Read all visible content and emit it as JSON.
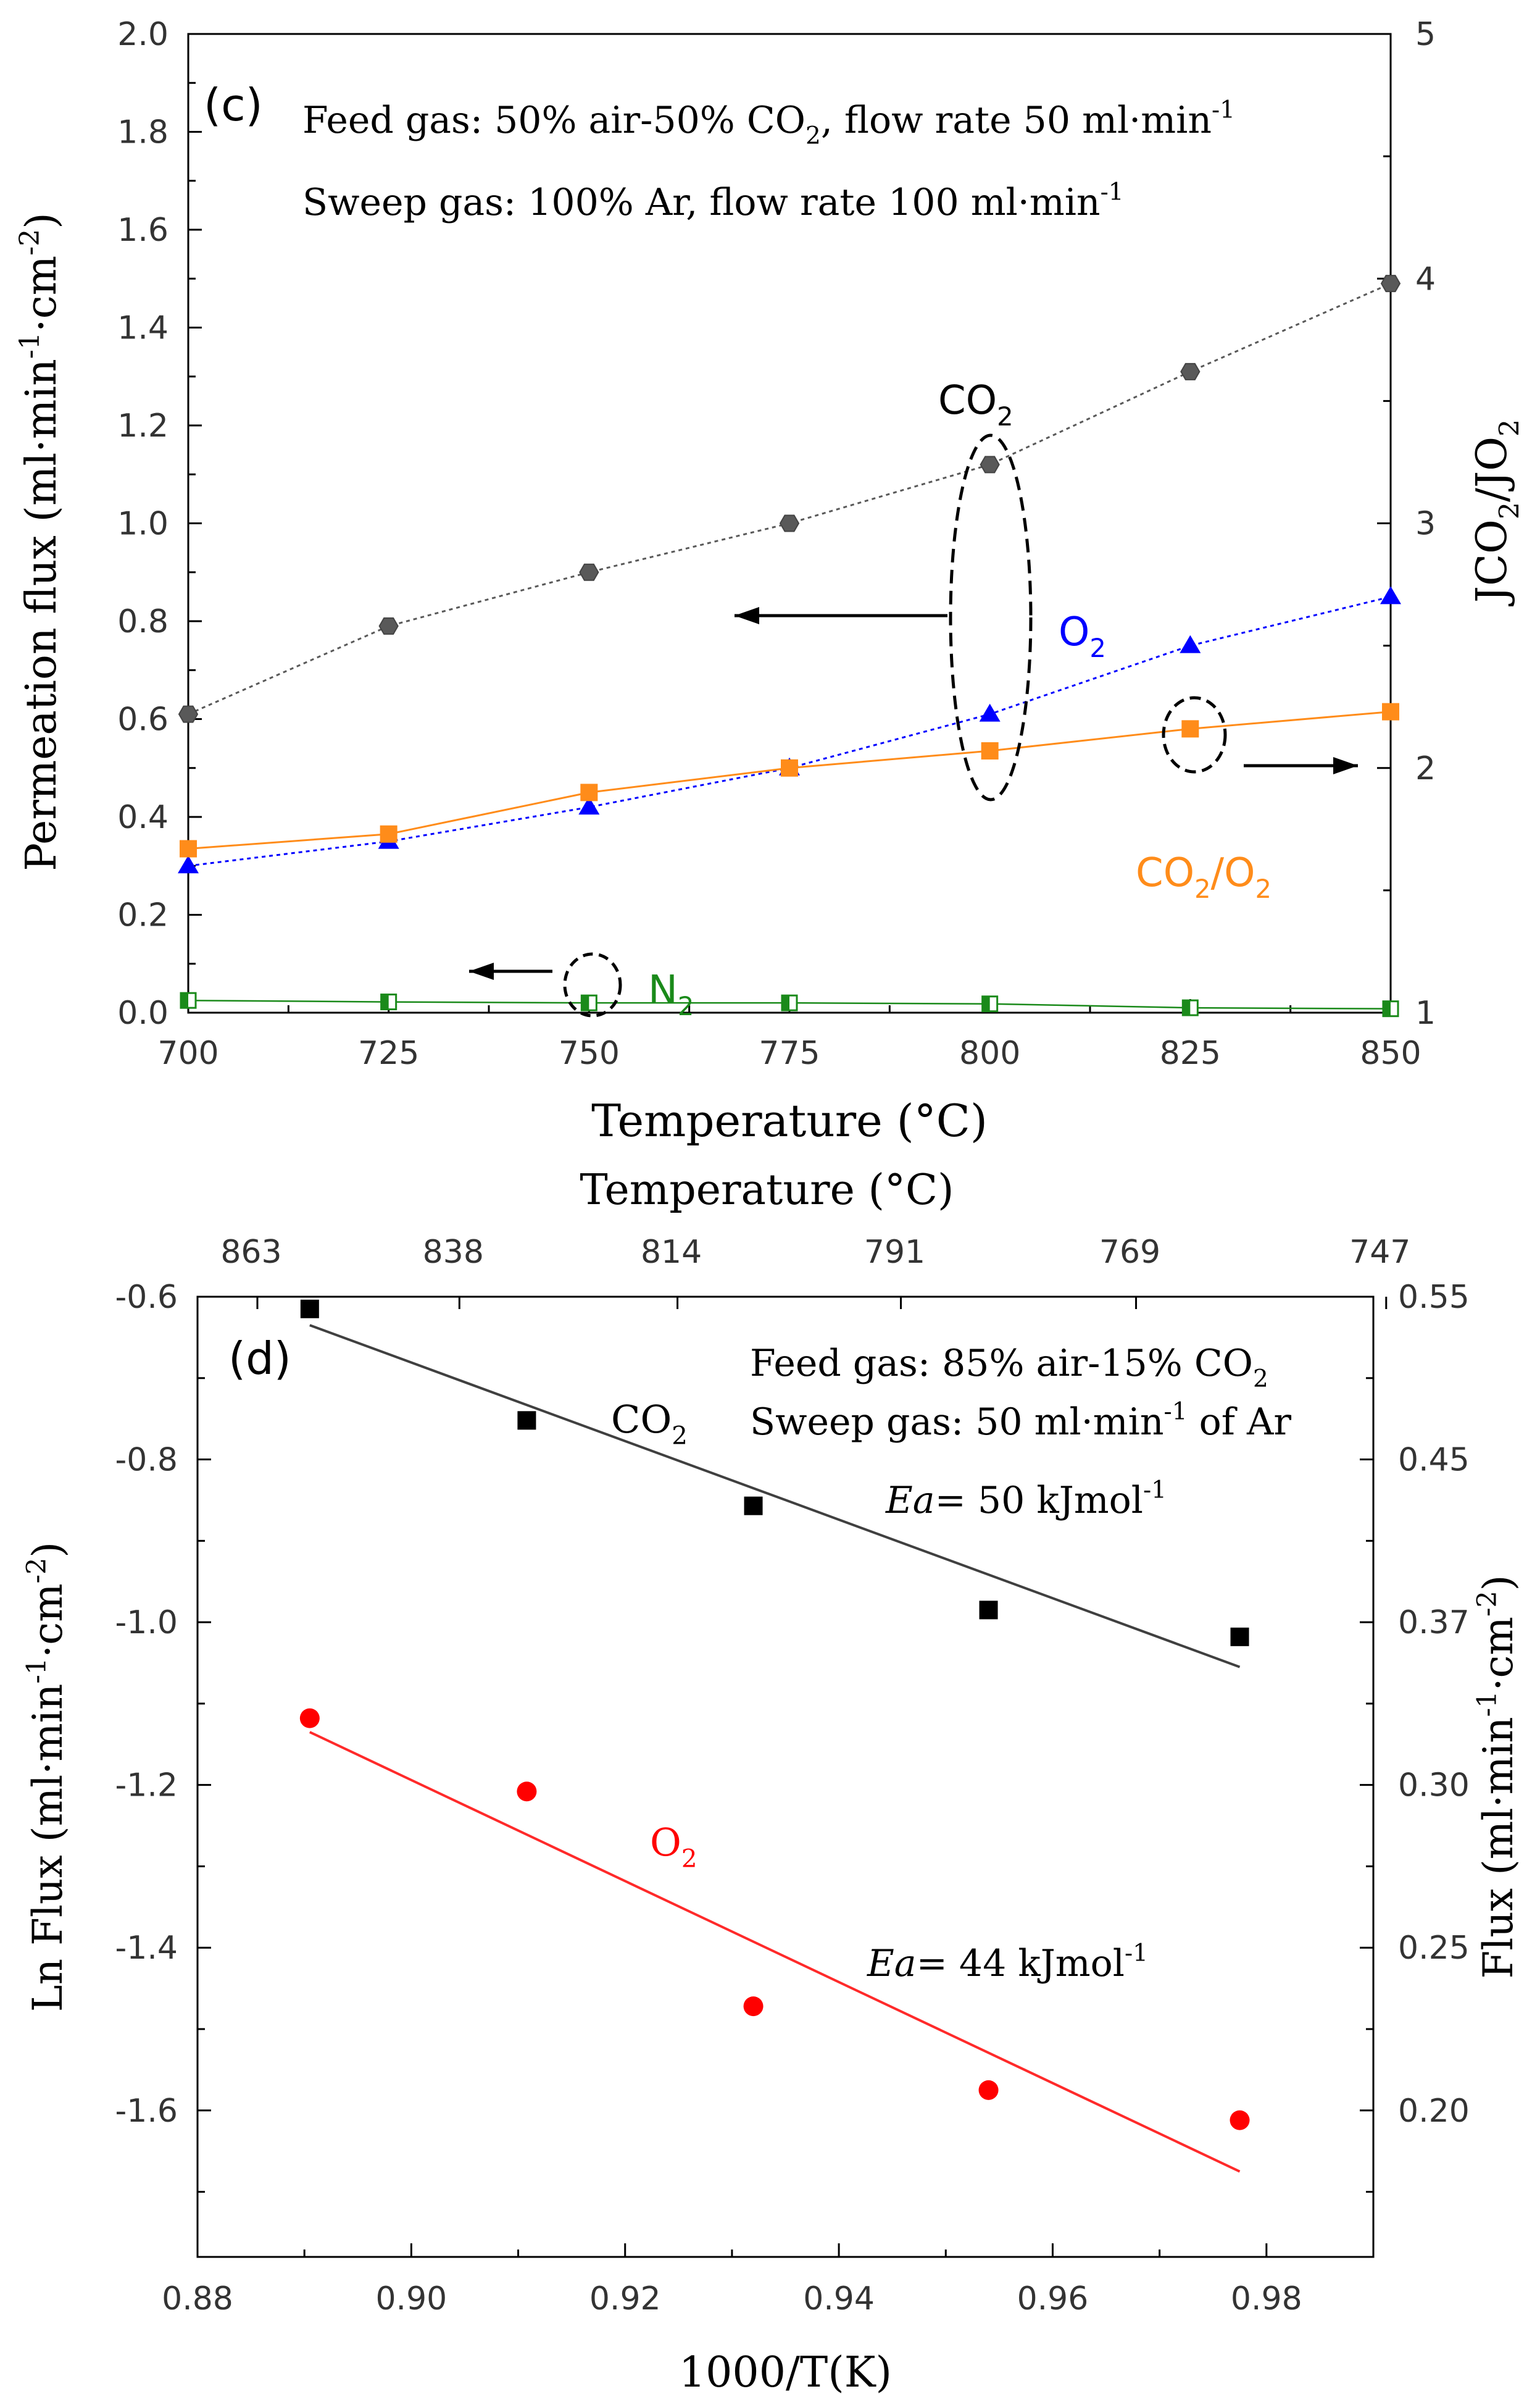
{
  "chart_data": [
    {
      "type": "line",
      "panel_label": "(c)",
      "annotations": {
        "feed": "Feed gas: 50% air-50% CO",
        "feed_sub": "2",
        "feed_tail": ", flow rate 50 ml·min",
        "feed_sup": "-1",
        "sweep": "Sweep gas: 100% Ar, flow rate 100 ml·min",
        "sweep_sup": "-1"
      },
      "xlabel": "Temperature (°C)",
      "ylabel": "Permeation flux (ml·min-1·cm-2)",
      "ylabel_main": "Permeation flux (ml·min",
      "ylabel_sup1": "-1",
      "ylabel_mid": "·cm",
      "ylabel_sup2": "-2",
      "ylabel_end": ")",
      "y2label": "JCO2/JO2",
      "y2label_parts": [
        "JCO",
        "2",
        "/JO",
        "2"
      ],
      "x": [
        700,
        725,
        750,
        775,
        800,
        825,
        850
      ],
      "xlim": [
        700,
        850
      ],
      "xticks": [
        "700",
        "725",
        "750",
        "775",
        "800",
        "825",
        "850"
      ],
      "ylim": [
        0,
        2.0
      ],
      "yticks": [
        "0.0",
        "0.2",
        "0.4",
        "0.6",
        "0.8",
        "1.0",
        "1.2",
        "1.4",
        "1.6",
        "1.8",
        "2.0"
      ],
      "y2lim": [
        1,
        5
      ],
      "y2ticks": [
        "1",
        "2",
        "3",
        "4",
        "5"
      ],
      "series": [
        {
          "name": "CO2",
          "label_main": "CO",
          "label_sub": "2",
          "axis": "left",
          "color": "#595959",
          "marker": "circle",
          "values": [
            0.61,
            0.79,
            0.9,
            1.0,
            1.12,
            1.31,
            1.49
          ]
        },
        {
          "name": "O2",
          "label_main": "O",
          "label_sub": "2",
          "axis": "left",
          "color": "#0000ff",
          "marker": "triangle",
          "values": [
            0.3,
            0.35,
            0.42,
            0.5,
            0.61,
            0.75,
            0.85
          ]
        },
        {
          "name": "N2",
          "label_main": "N",
          "label_sub": "2",
          "axis": "left",
          "color": "#1a8a1a",
          "marker": "square-half",
          "values": [
            0.025,
            0.022,
            0.02,
            0.02,
            0.018,
            0.01,
            0.008
          ]
        },
        {
          "name": "CO2/O2",
          "label_main": "CO",
          "label_sub": "2",
          "label_mid": "/O",
          "label_sub2": "2",
          "axis": "right",
          "color": "#ff8c1a",
          "marker": "square",
          "values": [
            1.67,
            1.73,
            1.9,
            2.0,
            2.07,
            2.16,
            2.23
          ]
        }
      ]
    },
    {
      "type": "scatter",
      "panel_label": "(d)",
      "annotations": {
        "feed": "Feed gas: 85% air-15% CO",
        "feed_sub": "2",
        "sweep": "Sweep gas:  50 ml·min",
        "sweep_sup": "-1",
        "sweep_tail": " of Ar",
        "ea_co2": "= 50 kJmol",
        "ea_o2": "= 44 kJmol",
        "ea_label": "Ea",
        "ea_sup": "-1"
      },
      "xlabel": "1000/T(K)",
      "top_xlabel": "Temperature (°C)",
      "ylabel_main": "Ln Flux (ml·min",
      "ylabel_sup1": "-1",
      "ylabel_mid": "·cm",
      "ylabel_sup2": "-2",
      "ylabel_end": ")",
      "y2label_main": "Flux (ml·min",
      "y2label_sup1": "-1",
      "y2label_mid": "·cm",
      "y2label_sup2": "-2",
      "y2label_end": ")",
      "xlim": [
        0.88,
        0.99
      ],
      "xticks": [
        "0.88",
        "0.90",
        "0.92",
        "0.94",
        "0.96",
        "0.98"
      ],
      "top_xticks": [
        "863",
        "838",
        "814",
        "791",
        "769",
        "747"
      ],
      "ylim": [
        -1.78,
        -0.6
      ],
      "yticks": [
        "-0.6",
        "-0.8",
        "-1.0",
        "-1.2",
        "-1.4",
        "-1.6"
      ],
      "y2ticks": [
        "0.55",
        "0.45",
        "0.37",
        "0.30",
        "0.25",
        "0.20"
      ],
      "series": [
        {
          "name": "CO2",
          "label_main": "CO",
          "label_sub": "2",
          "color": "#000000",
          "marker": "square",
          "x": [
            0.8905,
            0.9108,
            0.932,
            0.954,
            0.9775
          ],
          "values": [
            -0.615,
            -0.752,
            -0.857,
            -0.985,
            -1.018
          ],
          "fit": {
            "x": [
              0.8905,
              0.9775
            ],
            "y": [
              -0.635,
              -1.055
            ],
            "color": "#404040"
          }
        },
        {
          "name": "O2",
          "label_main": "O",
          "label_sub": "2",
          "color": "#ff0000",
          "marker": "circle",
          "x": [
            0.8905,
            0.9108,
            0.932,
            0.954,
            0.9775
          ],
          "values": [
            -1.118,
            -1.208,
            -1.472,
            -1.575,
            -1.612
          ],
          "fit": {
            "x": [
              0.8905,
              0.9775
            ],
            "y": [
              -1.135,
              -1.675
            ],
            "color": "#ff2a2a"
          }
        }
      ]
    }
  ]
}
